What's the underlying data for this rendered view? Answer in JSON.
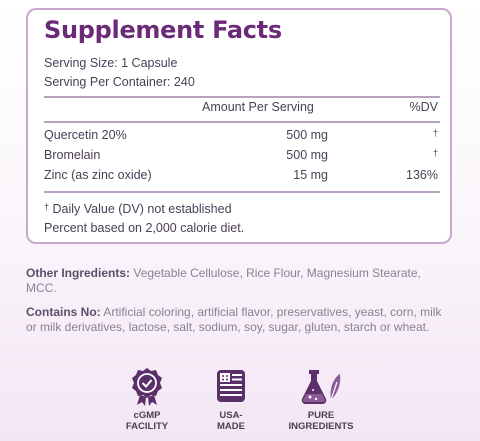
{
  "facts": {
    "title": "Supplement Facts",
    "serving_size": "Serving Size: 1 Capsule",
    "servings_per_container": "Serving Per Container: 240",
    "col_amount": "Amount Per Serving",
    "col_dv": "%DV",
    "rows": [
      {
        "name": "Quercetin 20%",
        "amount": "500 mg",
        "dv": "†"
      },
      {
        "name": "Bromelain",
        "amount": "500 mg",
        "dv": "†"
      },
      {
        "name": "Zinc (as zinc oxide)",
        "amount": "15 mg",
        "dv": "136%"
      }
    ],
    "footnote_dagger": "†",
    "footnote_text": "Daily Value (DV) not established",
    "footnote_calorie": "Percent based on 2,000 calorie diet."
  },
  "other_ingredients": {
    "label": "Other Ingredients:",
    "text": "Vegetable Cellulose, Rice Flour, Magnesium Stearate, MCC."
  },
  "contains_no": {
    "label": "Contains No:",
    "text": "Artificial coloring, artificial flavor, preservatives, yeast, corn, milk or milk derivatives, lactose, salt, sodium, soy, sugar, gluten, starch or wheat."
  },
  "badges": [
    {
      "line1": "cGMP",
      "line2": "FACILITY",
      "icon": "award-ribbon-icon"
    },
    {
      "line1": "USA-",
      "line2": "MADE",
      "icon": "us-flag-icon"
    },
    {
      "line1": "PURE",
      "line2": "INGREDIENTS",
      "icon": "flask-leaf-icon"
    }
  ],
  "colors": {
    "brand_purple": "#6b2a78",
    "badge_icon": "#5a2f6a",
    "border": "#c9a6cc"
  }
}
